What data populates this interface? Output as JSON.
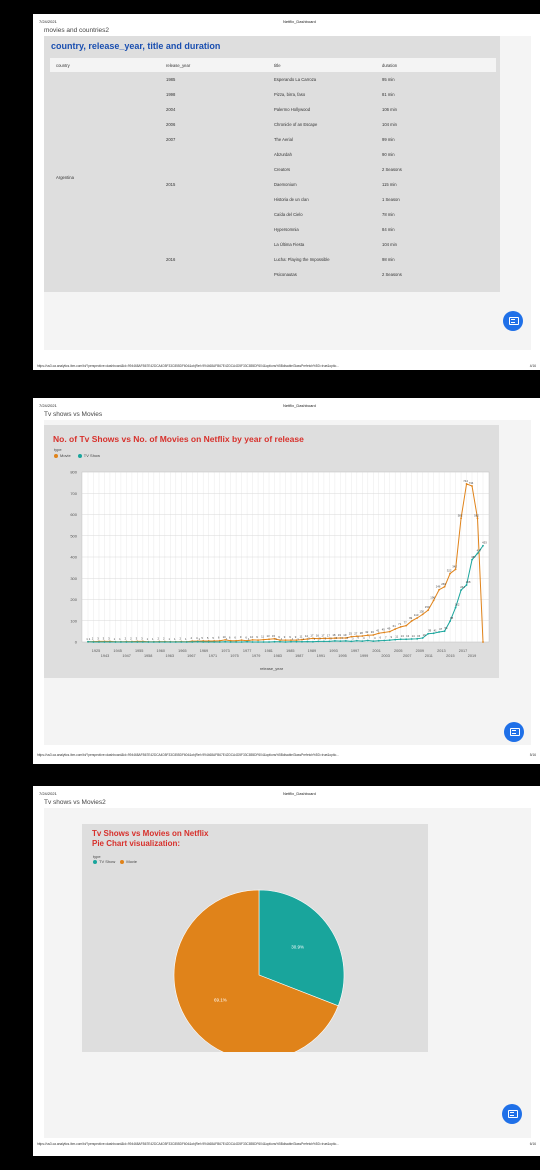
{
  "colors": {
    "movie": "#e0831a",
    "tv": "#19a59c",
    "accent_title": "#d7302b",
    "table_title": "#1a4fb0",
    "fab": "#1f70e8"
  },
  "pages": [
    {
      "date": "7/24/2021",
      "header_title": "Netflix_Dashboard",
      "tab_title": "movies and countries2",
      "url": "https://us3.ca.analytics.ibm.com/bi/?perspective=dashboard&id=994468AFB67E42DCA4D5F33C855DF604&objRef=994468AFB67E42DCA4D5F33C855DF604&options%5BdisableGlassPrefetch%5D=true&optio...",
      "page_num": "4/16"
    },
    {
      "date": "7/24/2021",
      "header_title": "Netflix_Dashboard",
      "tab_title": "Tv shows vs Movies",
      "url": "https://us3.ca.analytics.ibm.com/bi/?perspective=dashboard&id=994468AFB67E42DCA4D5F33C855DF604&objRef=994468AFB67E42DCA4D5F33C855DF604&options%5BdisableGlassPrefetch%5D=true&optio...",
      "page_num": "5/16"
    },
    {
      "date": "7/24/2021",
      "header_title": "Netflix_Dashboard",
      "tab_title": "Tv shows vs Movies2",
      "url": "https://us3.ca.analytics.ibm.com/bi/?perspective=dashboard&id=994468AFB67E42DCA4D5F33C855DF604&objRef=994468AFB67E42DCA4D5F33C855DF604&options%5BdisableGlassPrefetch%5D=true&optio...",
      "page_num": "6/16"
    }
  ],
  "table": {
    "title": "country, release_year, title and duration",
    "headers": [
      "country",
      "release_year",
      "title",
      "duration"
    ],
    "country": "Argentina",
    "rows": [
      {
        "year": "1985",
        "title": "Esperando La Carroza",
        "duration": "95 min"
      },
      {
        "year": "1998",
        "title": "Pizza, birra, faso",
        "duration": "81 min"
      },
      {
        "year": "2004",
        "title": "Palermo Hollywood",
        "duration": "106 min"
      },
      {
        "year": "2006",
        "title": "Chronicle of an Escape",
        "duration": "104 min"
      },
      {
        "year": "2007",
        "title": "The Aerial",
        "duration": "99 min"
      },
      {
        "year": "",
        "title": "Abzurdah",
        "duration": "90 min"
      },
      {
        "year": "",
        "title": "Creators",
        "duration": "2 Seasons"
      },
      {
        "year": "2015",
        "title": "Daemonium",
        "duration": "115 min"
      },
      {
        "year": "",
        "title": "Historia de un clan",
        "duration": "1 Season"
      },
      {
        "year": "",
        "title": "Caída del Cielo",
        "duration": "78 min"
      },
      {
        "year": "",
        "title": "Hypersomnia",
        "duration": "84 min"
      },
      {
        "year": "",
        "title": "La Última Fiesta",
        "duration": "104 min"
      },
      {
        "year": "2016",
        "title": "Lucha: Playing the Impossible",
        "duration": "98 min"
      },
      {
        "year": "",
        "title": "Psiconautas",
        "duration": "2 Seasons"
      }
    ]
  },
  "chart_data": [
    {
      "type": "line",
      "title": "No. of Tv Shows vs No. of Movies on Netflix by year of release",
      "legend_title": "type",
      "legend_placement": "top-left",
      "xlabel": "release_year",
      "ylabel": "",
      "ylim": [
        0,
        800
      ],
      "yticks": [
        0,
        100,
        200,
        300,
        400,
        500,
        600,
        700,
        800
      ],
      "xticks_row1": [
        "1925",
        "1945",
        "1955",
        "1960",
        "1965",
        "1969",
        "1973",
        "1977",
        "1981",
        "1985",
        "1989",
        "1993",
        "1997",
        "2001",
        "2005",
        "2009",
        "2013",
        "2017"
      ],
      "xticks_row2": [
        "1943",
        "1947",
        "1958",
        "1963",
        "1967",
        "1971",
        "1975",
        "1979",
        "1983",
        "1987",
        "1991",
        "1995",
        "1999",
        "2003",
        "2007",
        "2011",
        "2015",
        "2019"
      ],
      "grid": true,
      "series": [
        {
          "name": "Movie",
          "color": "#e0831a",
          "x": [
            1925,
            1942,
            1943,
            1944,
            1945,
            1946,
            1947,
            1954,
            1955,
            1956,
            1958,
            1959,
            1960,
            1961,
            1962,
            1963,
            1964,
            1965,
            1966,
            1967,
            1968,
            1969,
            1970,
            1971,
            1972,
            1973,
            1974,
            1975,
            1976,
            1977,
            1978,
            1979,
            1980,
            1981,
            1982,
            1983,
            1984,
            1985,
            1986,
            1987,
            1988,
            1989,
            1990,
            1991,
            1992,
            1993,
            1994,
            1995,
            1996,
            1997,
            1998,
            1999,
            2000,
            2001,
            2002,
            2003,
            2004,
            2005,
            2006,
            2007,
            2008,
            2009,
            2010,
            2011,
            2012,
            2013,
            2014,
            2015,
            2016,
            2017,
            2018,
            2019,
            2020
          ],
          "y": [
            1,
            2,
            3,
            3,
            3,
            1,
            1,
            2,
            2,
            3,
            3,
            1,
            1,
            2,
            2,
            1,
            1,
            2,
            1,
            4,
            4,
            5,
            5,
            5,
            6,
            10,
            6,
            6,
            9,
            6,
            10,
            9,
            11,
            13,
            15,
            9,
            9,
            9,
            9,
            11,
            14,
            17,
            16,
            17,
            17,
            18,
            19,
            19,
            25,
            27,
            28,
            32,
            33,
            41,
            45,
            49,
            61,
            71,
            77,
            99,
            113,
            130,
            150,
            196,
            246,
            260,
            322,
            342,
            582,
            744,
            734,
            582,
            0
          ]
        },
        {
          "name": "TV Show",
          "color": "#19a59c",
          "x": [
            1925,
            1942,
            1943,
            1944,
            1945,
            1946,
            1947,
            1954,
            1955,
            1956,
            1958,
            1959,
            1960,
            1961,
            1962,
            1963,
            1964,
            1965,
            1966,
            1967,
            1968,
            1969,
            1970,
            1971,
            1972,
            1973,
            1974,
            1975,
            1976,
            1977,
            1978,
            1979,
            1980,
            1981,
            1982,
            1983,
            1984,
            1985,
            1986,
            1987,
            1988,
            1989,
            1990,
            1991,
            1992,
            1993,
            1994,
            1995,
            1996,
            1997,
            1998,
            1999,
            2000,
            2001,
            2002,
            2003,
            2004,
            2005,
            2006,
            2007,
            2008,
            2009,
            2010,
            2011,
            2012,
            2013,
            2014,
            2015,
            2016,
            2017,
            2018,
            2019,
            2020
          ],
          "y": [
            1,
            0,
            0,
            0,
            0,
            0,
            0,
            0,
            0,
            0,
            0,
            0,
            0,
            0,
            0,
            0,
            0,
            0,
            0,
            0,
            1,
            0,
            0,
            0,
            0,
            1,
            0,
            0,
            0,
            1,
            0,
            0,
            0,
            0,
            1,
            1,
            0,
            1,
            1,
            1,
            2,
            1,
            3,
            3,
            3,
            5,
            4,
            5,
            3,
            6,
            4,
            7,
            4,
            6,
            7,
            9,
            11,
            13,
            13,
            14,
            15,
            19,
            39,
            41,
            47,
            51,
            98,
            162,
            244,
            268,
            387,
            417,
            453
          ]
        }
      ]
    },
    {
      "type": "pie",
      "title": "Tv Shows vs Movies on Netflix\nPie Chart visualization:",
      "legend_title": "type",
      "legend_placement": "top-left",
      "labels": [
        "TV Show",
        "Movie"
      ],
      "values": [
        30.9,
        69.1
      ],
      "value_labels": [
        "30.9%",
        "69.1%"
      ],
      "colors": [
        "#19a59c",
        "#e0831a"
      ]
    }
  ]
}
